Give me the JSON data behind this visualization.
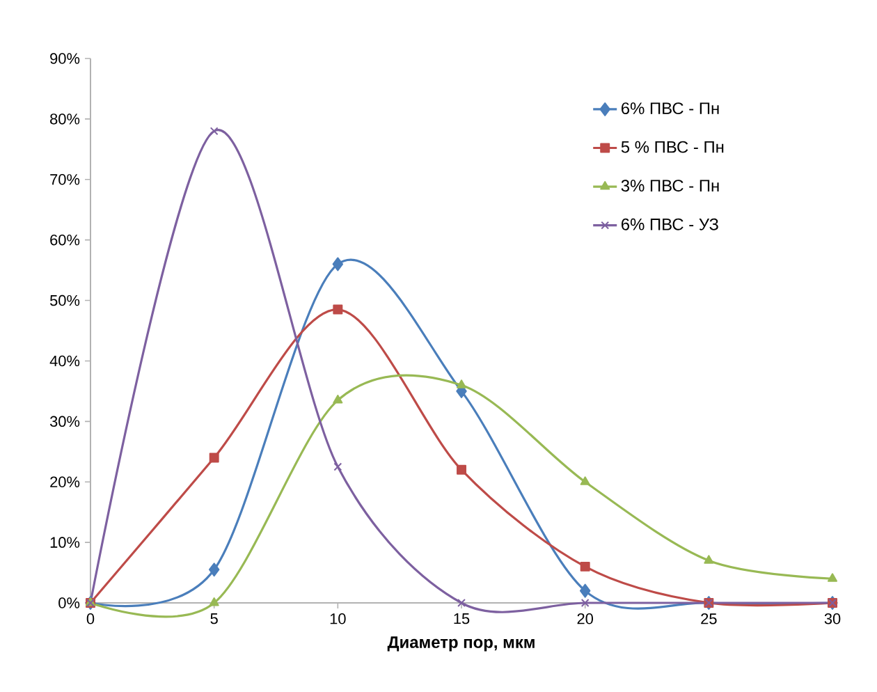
{
  "chart_data": {
    "type": "line",
    "xlabel": "Диаметр пор, мкм",
    "x": [
      0,
      5,
      10,
      15,
      20,
      25,
      30
    ],
    "series": [
      {
        "name": "6% ПВС - Пн",
        "color": "#4a7ebb",
        "marker": "diamond",
        "values": [
          0,
          5.5,
          56,
          35,
          2,
          0,
          0
        ]
      },
      {
        "name": "5 % ПВС - Пн",
        "color": "#be4b48",
        "marker": "square",
        "values": [
          0,
          24,
          48.5,
          22,
          6,
          0,
          0
        ]
      },
      {
        "name": "3% ПВС - Пн",
        "color": "#98b954",
        "marker": "triangle",
        "values": [
          0,
          0,
          33.5,
          36,
          20,
          7,
          4
        ]
      },
      {
        "name": "6% ПВС - УЗ",
        "color": "#7d60a0",
        "marker": "cross",
        "values": [
          0,
          78,
          22.5,
          0,
          0,
          0,
          0
        ]
      }
    ],
    "xlim": [
      0,
      30
    ],
    "xticks": [
      0,
      5,
      10,
      15,
      20,
      25,
      30
    ],
    "ylim": [
      0,
      90
    ],
    "yticks": [
      {
        "value": 0,
        "label": "0%"
      },
      {
        "value": 10,
        "label": "10%"
      },
      {
        "value": 20,
        "label": "20%"
      },
      {
        "value": 30,
        "label": "30%"
      },
      {
        "value": 40,
        "label": "40%"
      },
      {
        "value": 50,
        "label": "50%"
      },
      {
        "value": 60,
        "label": "60%"
      },
      {
        "value": 70,
        "label": "70%"
      },
      {
        "value": 80,
        "label": "80%"
      },
      {
        "value": 90,
        "label": "90%"
      }
    ],
    "legend": "top right",
    "grid": false
  }
}
